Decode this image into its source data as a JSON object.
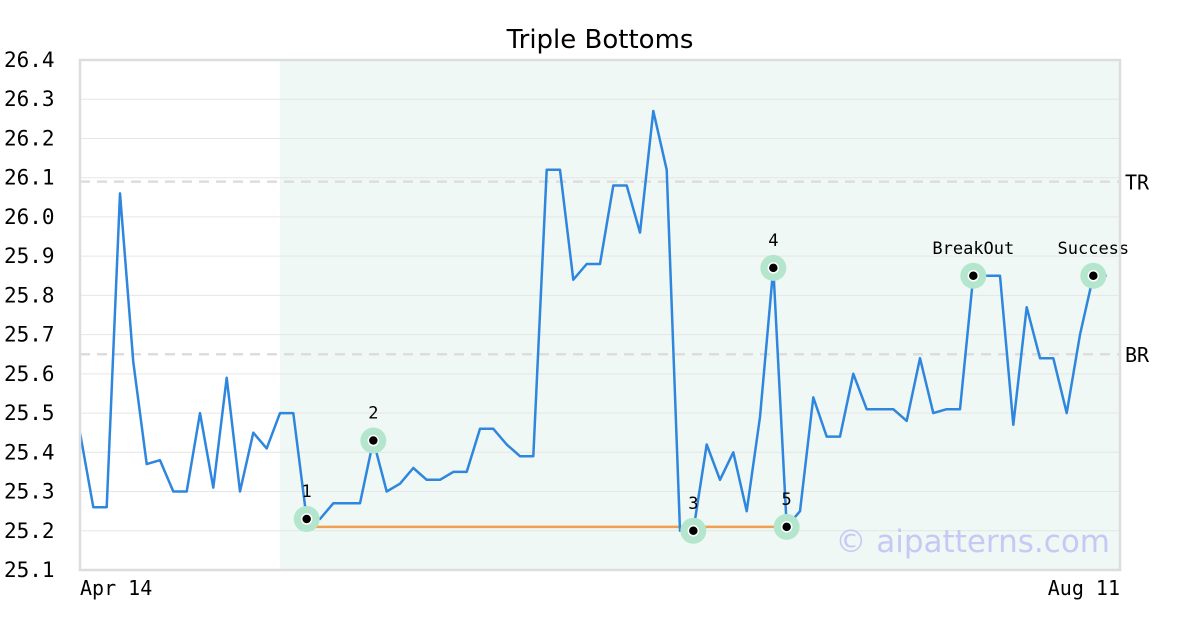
{
  "chart_data": {
    "type": "line",
    "title": "Triple Bottoms",
    "ylim": [
      25.1,
      26.4
    ],
    "yticks": [
      "25.1",
      "25.2",
      "25.3",
      "25.4",
      "25.5",
      "25.6",
      "25.7",
      "25.8",
      "25.9",
      "26.0",
      "26.1",
      "26.2",
      "26.3",
      "26.4"
    ],
    "xtick_labels": [
      {
        "x": 0,
        "label": "Apr 14"
      },
      {
        "x": 76,
        "label": "Aug 11"
      }
    ],
    "grid": "horizontal",
    "highlight_range": [
      15,
      78
    ],
    "series": [
      {
        "x": [
          0,
          1,
          2,
          3,
          4,
          5,
          6,
          7,
          8,
          9,
          10,
          11,
          12,
          13,
          14,
          15,
          16,
          17,
          18,
          19,
          20,
          21,
          22,
          23,
          24,
          25,
          26,
          27,
          28,
          29,
          30,
          31,
          32,
          33,
          34,
          35,
          36,
          37,
          38,
          39,
          40,
          41,
          42,
          43,
          44,
          45,
          46,
          47,
          48,
          49,
          50,
          51,
          52,
          53,
          54,
          55,
          56,
          57,
          58,
          59,
          60,
          61,
          62,
          63,
          64,
          65,
          66,
          67,
          68,
          69,
          70,
          71,
          72,
          73,
          74,
          75,
          76,
          77
        ],
        "values": [
          25.45,
          25.26,
          25.26,
          26.06,
          25.63,
          25.37,
          25.38,
          25.3,
          25.3,
          25.5,
          25.31,
          25.59,
          25.3,
          25.45,
          25.41,
          25.5,
          25.5,
          25.23,
          25.23,
          25.27,
          25.27,
          25.27,
          25.43,
          25.3,
          25.32,
          25.36,
          25.33,
          25.33,
          25.35,
          25.35,
          25.46,
          25.46,
          25.42,
          25.39,
          25.39,
          26.12,
          26.12,
          25.84,
          25.88,
          25.88,
          26.08,
          26.08,
          25.96,
          26.27,
          26.12,
          25.2,
          25.2,
          25.42,
          25.33,
          25.4,
          25.25,
          25.49,
          25.87,
          25.21,
          25.25,
          25.54,
          25.44,
          25.44,
          25.6,
          25.51,
          25.51,
          25.51,
          25.48,
          25.64,
          25.5,
          25.51,
          25.51,
          25.85,
          25.85,
          25.85,
          25.47,
          25.77,
          25.64,
          25.64,
          25.5,
          25.7,
          25.85,
          25.85
        ],
        "color": "#2e86de"
      }
    ],
    "reference_lines": [
      {
        "label": "TR",
        "y": 26.09,
        "color": "#dddddd"
      },
      {
        "label": "BR",
        "y": 25.65,
        "color": "#dddddd"
      }
    ],
    "support_line": {
      "x0": 17,
      "x1": 53,
      "y": 25.21,
      "color": "#f0a050"
    },
    "markers": [
      {
        "label": "1",
        "x": 17,
        "y": 25.23,
        "label_pos": "above"
      },
      {
        "label": "2",
        "x": 22,
        "y": 25.43,
        "label_pos": "above"
      },
      {
        "label": "3",
        "x": 46,
        "y": 25.2,
        "label_pos": "above"
      },
      {
        "label": "4",
        "x": 52,
        "y": 25.87,
        "label_pos": "above"
      },
      {
        "label": "5",
        "x": 53,
        "y": 25.21,
        "label_pos": "above"
      },
      {
        "label": "BreakOut",
        "x": 67,
        "y": 25.85,
        "label_pos": "above"
      },
      {
        "label": "Success",
        "x": 76,
        "y": 25.85,
        "label_pos": "above"
      }
    ],
    "marker_color": "#b4e6cd",
    "highlight_color": "#eff8f4"
  },
  "watermark": "© aipatterns.com"
}
